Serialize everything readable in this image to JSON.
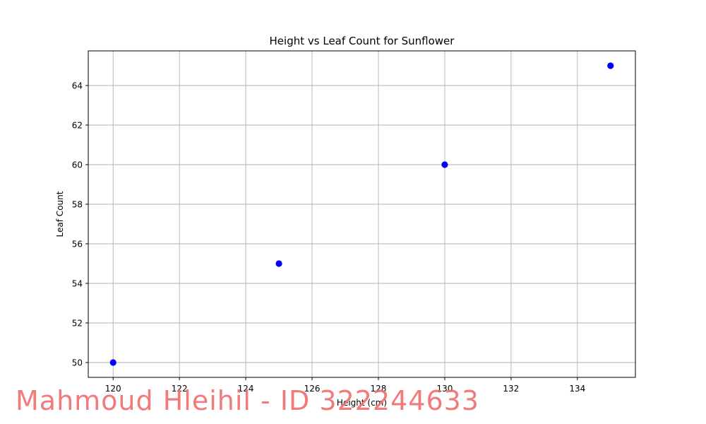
{
  "chart_data": {
    "type": "scatter",
    "title": "Height vs Leaf Count for Sunflower",
    "xlabel": "Height (cm)",
    "ylabel": "Leaf Count",
    "x": [
      120,
      125,
      130,
      135
    ],
    "y": [
      50,
      55,
      60,
      65
    ],
    "xlim": [
      119.25,
      135.75
    ],
    "ylim": [
      49.25,
      65.75
    ],
    "xticks": [
      "120",
      "122",
      "124",
      "126",
      "128",
      "130",
      "132",
      "134"
    ],
    "yticks": [
      "50",
      "52",
      "54",
      "56",
      "58",
      "60",
      "62",
      "64"
    ],
    "grid": true,
    "marker_color": "#0000ff"
  },
  "watermark": "Mahmoud Hleihil - ID 322244633"
}
